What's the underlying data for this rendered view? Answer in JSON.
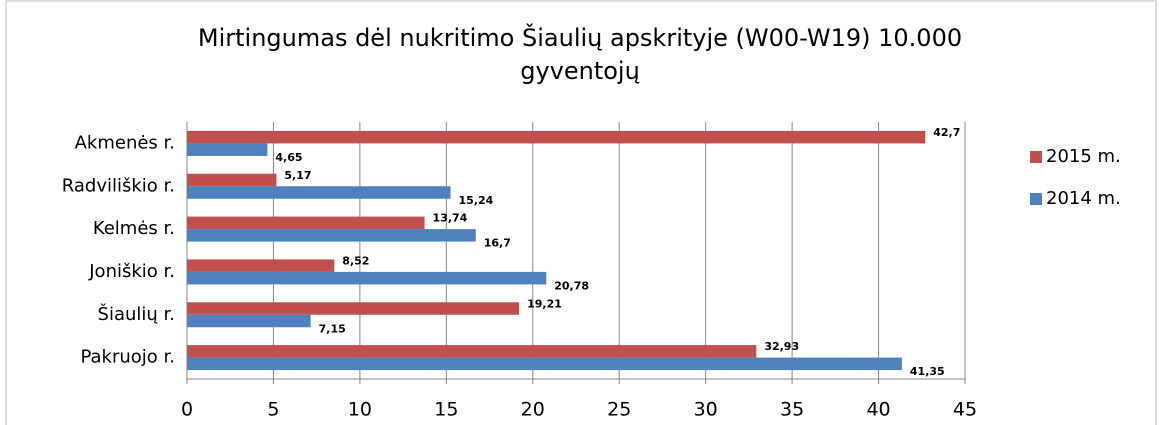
{
  "chart_data": {
    "type": "bar",
    "orientation": "horizontal",
    "title": "Mirtingumas dėl nukritimo Šiaulių apskrityje (W00-W19) 10.000 gyventojų",
    "categories": [
      "Akmenės r.",
      "Radviliškio r.",
      "Kelmės r.",
      "Joniškio r.",
      "Šiaulių r.",
      "Pakruojo r."
    ],
    "series": [
      {
        "name": "2015 m.",
        "color": "#c0504d",
        "values": [
          42.7,
          5.17,
          13.74,
          8.52,
          19.21,
          32.93
        ],
        "value_labels": [
          "42,7",
          "5,17",
          "13,74",
          "8,52",
          "19,21",
          "32,93"
        ]
      },
      {
        "name": "2014 m.",
        "color": "#4f81bd",
        "values": [
          4.65,
          15.24,
          16.7,
          20.78,
          7.15,
          41.35
        ],
        "value_labels": [
          "4,65",
          "15,24",
          "16,7",
          "20,78",
          "7,15",
          "41,35"
        ]
      }
    ],
    "xlim": [
      0,
      45
    ],
    "xticks": [
      0,
      5,
      10,
      15,
      20,
      25,
      30,
      35,
      40,
      45
    ],
    "grid": true,
    "legend": "right"
  }
}
